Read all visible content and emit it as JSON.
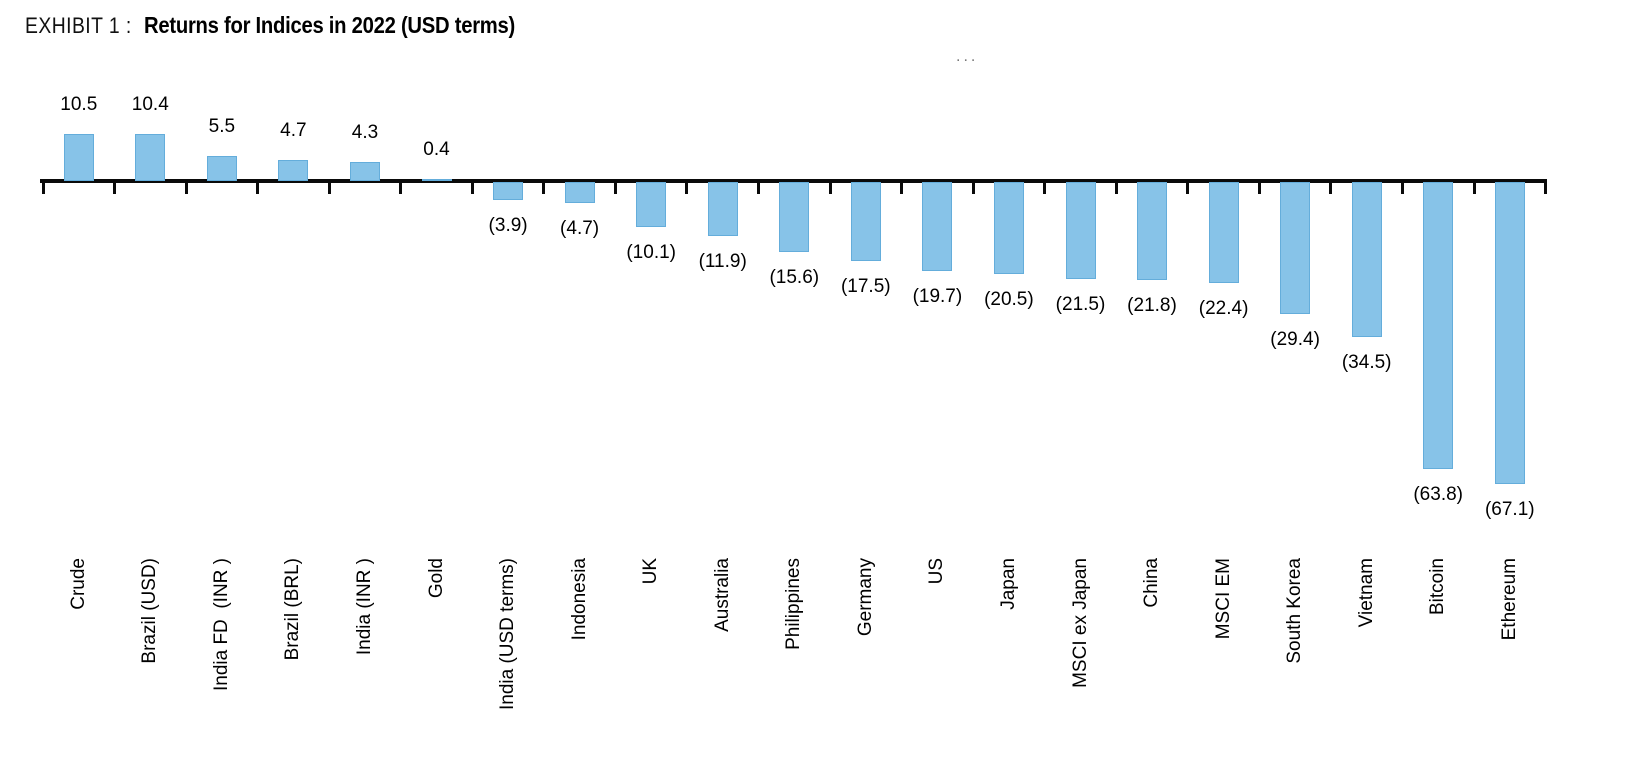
{
  "header": {
    "exhibit_label": "EXHIBIT 1 :",
    "title": "Returns for Indices in 2022 (USD terms)"
  },
  "decor": {
    "ellipsis": "..."
  },
  "chart_data": {
    "type": "bar",
    "title": "Returns for Indices in 2022 (USD terms)",
    "exhibit": "EXHIBIT 1 :",
    "categories": [
      "Crude",
      "Brazil (USD)",
      "India FD  (INR )",
      "Brazil (BRL)",
      "India (INR )",
      "Gold",
      "India (USD terms)",
      "Indonesia",
      "UK",
      "Australia",
      "Philippines",
      "Germany",
      "US",
      "Japan",
      "MSCI ex Japan",
      "China",
      "MSCI EM",
      "South Korea",
      "Vietnam",
      "Bitcoin",
      "Ethereum"
    ],
    "values": [
      10.5,
      10.4,
      5.5,
      4.7,
      4.3,
      0.4,
      -3.9,
      -4.7,
      -10.1,
      -11.9,
      -15.6,
      -17.5,
      -19.7,
      -20.5,
      -21.5,
      -21.8,
      -22.4,
      -29.4,
      -34.5,
      -63.8,
      -67.1
    ],
    "value_labels": [
      "10.5",
      "10.4",
      "5.5",
      "4.7",
      "4.3",
      "0.4",
      "(3.9)",
      "(4.7)",
      "(10.1)",
      "(11.9)",
      "(15.6)",
      "(17.5)",
      "(19.7)",
      "(20.5)",
      "(21.5)",
      "(21.8)",
      "(22.4)",
      "(29.4)",
      "(34.5)",
      "(63.8)",
      "(67.1)"
    ],
    "xlabel": "",
    "ylabel": "",
    "ylim": [
      -70,
      12
    ],
    "grid": false,
    "legend": "none",
    "negative_format": "parentheses",
    "colors": {
      "bar_fill": "#87C3E8",
      "bar_border": "#64ADDB",
      "axis": "#0a0a0a",
      "text": "#000000"
    }
  }
}
